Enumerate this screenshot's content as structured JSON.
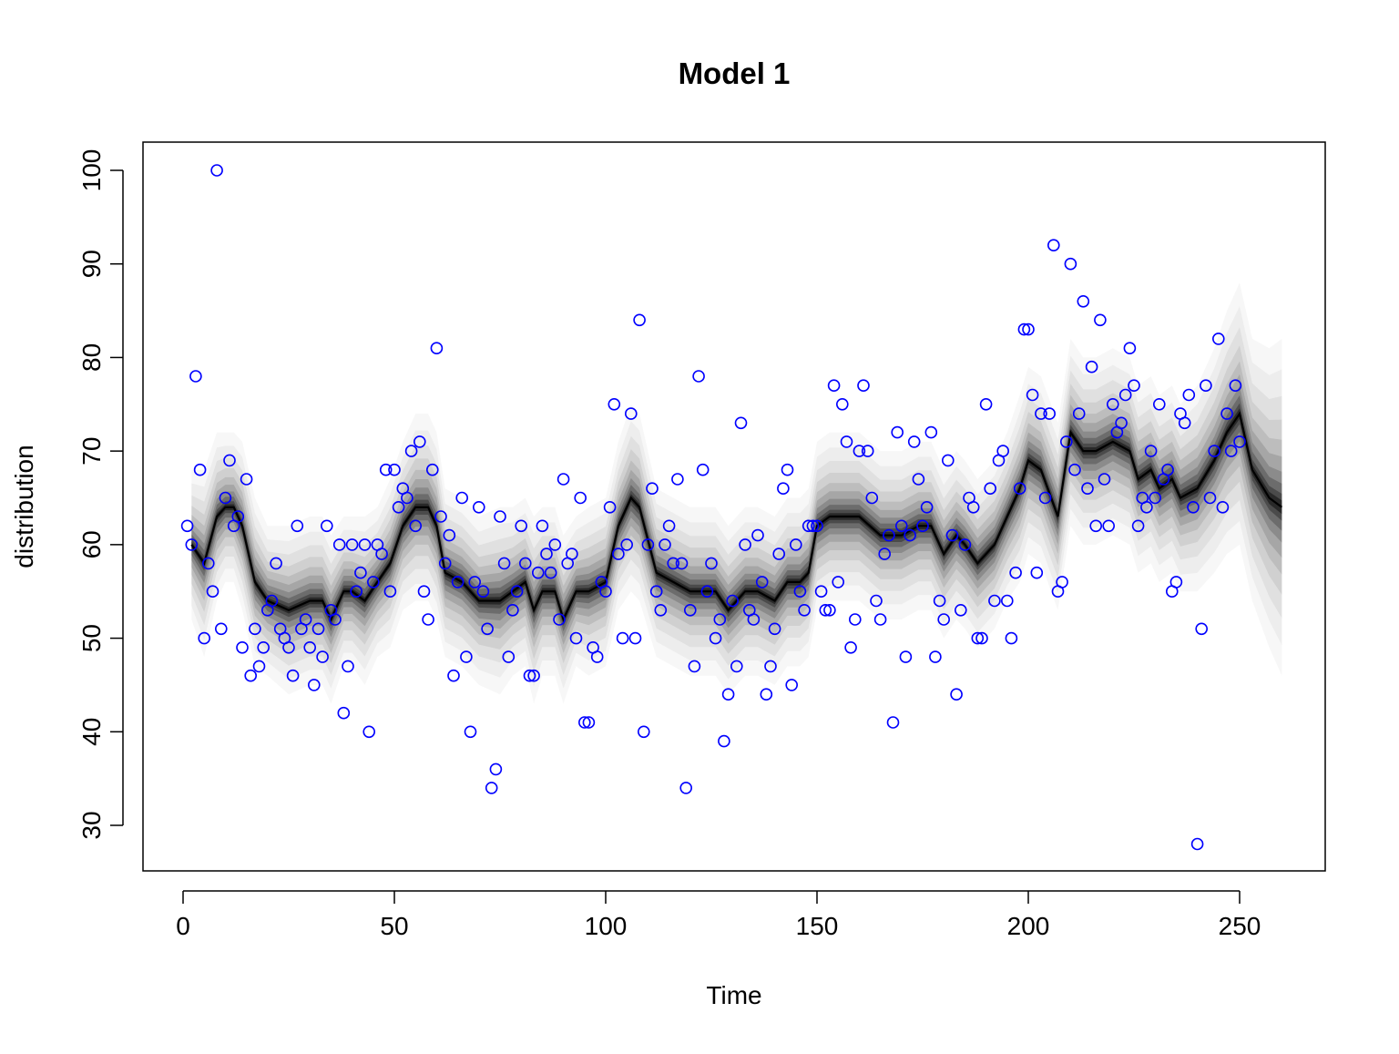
{
  "chart_data": {
    "type": "scatter",
    "title": "Model 1",
    "xlabel": "Time",
    "ylabel": "distribution",
    "xlim": [
      -10,
      270
    ],
    "ylim": [
      25,
      103
    ],
    "xticks": [
      0,
      50,
      100,
      150,
      200,
      250
    ],
    "yticks": [
      30,
      40,
      50,
      60,
      70,
      80,
      90,
      100
    ],
    "grid": false,
    "legend": "none",
    "point_color": "#0000ff",
    "band_color": "#000000",
    "observations": {
      "x": [
        1,
        2,
        3,
        4,
        5,
        6,
        7,
        8,
        9,
        10,
        11,
        12,
        13,
        14,
        15,
        16,
        17,
        18,
        19,
        20,
        21,
        22,
        23,
        24,
        25,
        26,
        27,
        28,
        29,
        30,
        31,
        32,
        33,
        34,
        35,
        36,
        37,
        38,
        39,
        40,
        41,
        42,
        43,
        44,
        45,
        46,
        47,
        48,
        49,
        50,
        51,
        52,
        53,
        54,
        55,
        56,
        57,
        58,
        59,
        60,
        61,
        62,
        63,
        64,
        65,
        66,
        67,
        68,
        69,
        70,
        71,
        72,
        73,
        74,
        75,
        76,
        77,
        78,
        79,
        80,
        81,
        82,
        83,
        84,
        85,
        86,
        87,
        88,
        89,
        90,
        91,
        92,
        93,
        94,
        95,
        96,
        97,
        98,
        99,
        100,
        101,
        102,
        103,
        104,
        105,
        106,
        107,
        108,
        109,
        110,
        111,
        112,
        113,
        114,
        115,
        116,
        117,
        118,
        119,
        120,
        121,
        122,
        123,
        124,
        125,
        126,
        127,
        128,
        129,
        130,
        131,
        132,
        133,
        134,
        135,
        136,
        137,
        138,
        139,
        140,
        141,
        142,
        143,
        144,
        145,
        146,
        147,
        148,
        149,
        150,
        151,
        152,
        153,
        154,
        155,
        156,
        157,
        158,
        159,
        160,
        161,
        162,
        163,
        164,
        165,
        166,
        167,
        168,
        169,
        170,
        171,
        172,
        173,
        174,
        175,
        176,
        177,
        178,
        179,
        180,
        181,
        182,
        183,
        184,
        185,
        186,
        187,
        188,
        189,
        190,
        191,
        192,
        193,
        194,
        195,
        196,
        197,
        198,
        199,
        200,
        201,
        202,
        203,
        204,
        205,
        206,
        207,
        208,
        209,
        210,
        211,
        212,
        213,
        214,
        215,
        216,
        217,
        218,
        219,
        220,
        221,
        222,
        223,
        224,
        225,
        226,
        227,
        228,
        229,
        230,
        231,
        232,
        233,
        234,
        235,
        236,
        237,
        238,
        239,
        240,
        241,
        242,
        243,
        244,
        245,
        246,
        247,
        248,
        249,
        250
      ],
      "y": [
        62,
        60,
        78,
        68,
        50,
        58,
        55,
        100,
        51,
        65,
        69,
        62,
        63,
        49,
        67,
        46,
        51,
        47,
        49,
        53,
        54,
        58,
        51,
        50,
        49,
        46,
        62,
        51,
        52,
        49,
        45,
        51,
        48,
        62,
        53,
        52,
        60,
        42,
        47,
        60,
        55,
        57,
        60,
        40,
        56,
        60,
        59,
        68,
        55,
        68,
        64,
        66,
        65,
        70,
        62,
        71,
        55,
        52,
        68,
        81,
        63,
        58,
        61,
        46,
        56,
        65,
        48,
        40,
        56,
        64,
        55,
        51,
        34,
        36,
        63,
        58,
        48,
        53,
        55,
        62,
        58,
        46,
        46,
        57,
        62,
        59,
        57,
        60,
        52,
        67,
        58,
        59,
        50,
        65,
        41,
        41,
        49,
        48,
        56,
        55,
        64,
        75,
        59,
        50,
        60,
        74,
        50,
        84,
        40,
        60,
        66,
        55,
        53,
        60,
        62,
        58,
        67,
        58,
        34,
        53,
        47,
        78,
        68,
        55,
        58,
        50,
        52,
        39,
        44,
        54,
        47,
        73,
        60,
        53,
        52,
        61,
        56,
        44,
        47,
        51,
        59,
        66,
        68,
        45,
        60,
        55,
        53,
        62,
        62,
        62,
        55,
        53,
        53,
        77,
        56,
        75,
        71,
        49,
        52,
        70,
        77,
        70,
        65,
        54,
        52,
        59,
        61,
        41,
        72,
        62,
        48,
        61,
        71,
        67,
        62,
        64,
        72,
        48,
        54,
        52,
        69,
        61,
        44,
        53,
        60,
        65,
        64,
        50,
        50,
        75,
        66,
        54,
        69,
        70,
        54,
        50,
        57,
        66,
        83,
        83,
        76,
        57,
        74,
        65,
        74,
        92,
        55,
        56,
        71,
        90,
        68,
        74,
        86,
        66,
        79,
        62,
        84,
        67,
        62,
        75,
        72,
        73,
        76,
        81,
        77,
        62,
        65,
        64,
        70,
        65,
        75,
        67,
        68,
        55,
        56,
        74,
        73,
        76,
        64,
        28,
        51,
        77,
        65,
        70,
        82,
        64,
        74,
        70,
        77,
        71
      ]
    },
    "median_band": {
      "x": [
        2,
        5,
        8,
        10,
        12,
        14,
        17,
        20,
        25,
        30,
        33,
        35,
        38,
        40,
        43,
        46,
        49,
        52,
        55,
        58,
        60,
        62,
        66,
        70,
        75,
        78,
        81,
        83,
        85,
        88,
        90,
        93,
        96,
        100,
        103,
        106,
        108,
        112,
        116,
        120,
        124,
        126,
        129,
        133,
        136,
        140,
        143,
        146,
        148,
        150,
        153,
        156,
        160,
        165,
        170,
        174,
        177,
        180,
        183,
        185,
        188,
        192,
        195,
        198,
        200,
        203,
        207,
        210,
        213,
        216,
        220,
        224,
        226,
        229,
        231,
        234,
        236,
        240,
        244,
        247,
        250,
        253,
        257,
        260
      ],
      "median": [
        60,
        58,
        63,
        64,
        64,
        62,
        56,
        54,
        53,
        54,
        54,
        52,
        55,
        55,
        54,
        56,
        58,
        62,
        64,
        64,
        62,
        57,
        56,
        54,
        54,
        55,
        56,
        53,
        55,
        55,
        52,
        55,
        55,
        56,
        62,
        65,
        64,
        57,
        56,
        55,
        55,
        55,
        53,
        55,
        55,
        54,
        56,
        56,
        57,
        62,
        63,
        63,
        63,
        61,
        61,
        62,
        62,
        59,
        61,
        60,
        58,
        60,
        63,
        66,
        69,
        68,
        63,
        72,
        70,
        70,
        71,
        70,
        67,
        68,
        66,
        67,
        65,
        66,
        69,
        72,
        74,
        68,
        65,
        64
      ],
      "spread": [
        8,
        10,
        9,
        8,
        8,
        9,
        9,
        8,
        9,
        9,
        9,
        9,
        8,
        8,
        9,
        8,
        9,
        9,
        10,
        10,
        10,
        9,
        9,
        9,
        10,
        9,
        9,
        10,
        9,
        9,
        9,
        8,
        9,
        9,
        9,
        10,
        10,
        9,
        9,
        9,
        9,
        9,
        9,
        9,
        9,
        9,
        9,
        9,
        9,
        9,
        9,
        9,
        9,
        9,
        9,
        9,
        9,
        9,
        9,
        9,
        9,
        9,
        9,
        10,
        10,
        10,
        10,
        10,
        10,
        10,
        10,
        10,
        10,
        10,
        10,
        10,
        10,
        11,
        12,
        13,
        14,
        14,
        16,
        18
      ]
    }
  }
}
